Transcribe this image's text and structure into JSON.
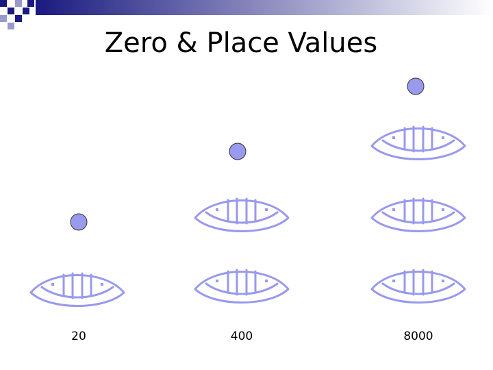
{
  "title": "Zero & Place Values",
  "columns": [
    {
      "label": "20"
    },
    {
      "label": "400"
    },
    {
      "label": "8000"
    }
  ]
}
